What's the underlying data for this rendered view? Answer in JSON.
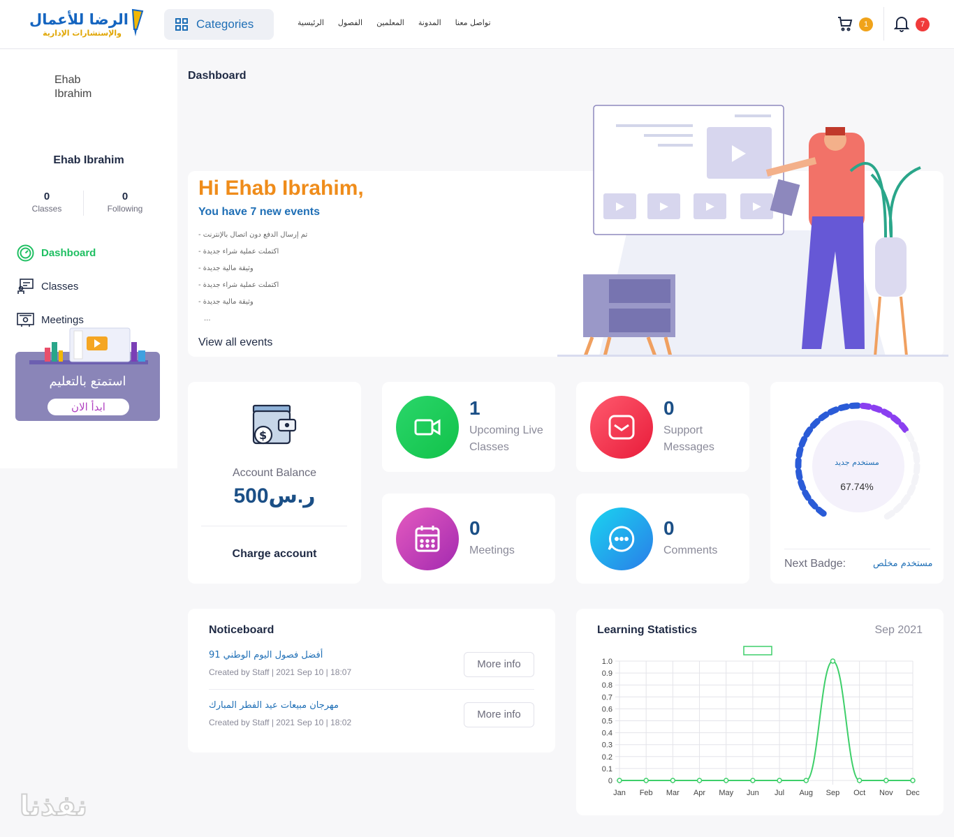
{
  "header": {
    "logo_main": "الرضا للأعمال",
    "logo_sub": "والإستشارات الإدارية",
    "categories_label": "Categories",
    "nav": [
      "تواصل معنا",
      "المدونة",
      "المعلمين",
      "الفصول",
      "الرئيسية"
    ],
    "cart_count": "1",
    "notification_count": "7"
  },
  "sidebar": {
    "avatar_alt": "Ehab Ibrahim",
    "user_name": "Ehab Ibrahim",
    "classes_count": "0",
    "classes_label": "Classes",
    "following_count": "0",
    "following_label": "Following",
    "menu": [
      {
        "label": "Dashboard",
        "icon": "gauge-icon"
      },
      {
        "label": "Classes",
        "icon": "classroom-icon"
      },
      {
        "label": "Meetings",
        "icon": "meeting-icon"
      }
    ],
    "promo_title": "استمتع بالتعليم",
    "promo_button": "ابدأ الان"
  },
  "main": {
    "page_title": "Dashboard",
    "hero": {
      "greeting": "Hi Ehab Ibrahim,",
      "subtitle": "You have 7 new events",
      "events": [
        "تم إرسال الدفع دون اتصال بالإنترنت -",
        "اكتملت عملية شراء جديدة -",
        "وثيقة مالية جديدة -",
        "اكتملت عملية شراء جديدة -",
        "وثيقة مالية جديدة -"
      ],
      "ellipsis": "...",
      "view_all": "View all events"
    },
    "balance": {
      "label": "Account Balance",
      "value": "500ر.س",
      "action": "Charge account"
    },
    "stats": {
      "upcoming_count": "1",
      "upcoming_label": "Upcoming Live Classes",
      "support_count": "0",
      "support_label": "Support Messages",
      "meetings_count": "0",
      "meetings_label": "Meetings",
      "comments_count": "0",
      "comments_label": "Comments"
    },
    "badge": {
      "current": "مستخدم جديد",
      "progress": 67.74,
      "percent_text": "67.74%",
      "next_label": "Next Badge:",
      "next_value": "مستخدم مخلص"
    },
    "noticeboard": {
      "title": "Noticeboard",
      "items": [
        {
          "title": "أفضل فصول اليوم الوطني 91",
          "meta": "Created by Staff  |  2021 Sep 10 | 18:07",
          "button": "More info"
        },
        {
          "title": "مهرجان مبيعات عيد الفطر المبارك",
          "meta": "Created by Staff  |  2021 Sep 10 | 18:02",
          "button": "More info"
        }
      ]
    },
    "learning": {
      "title": "Learning Statistics",
      "date": "Sep 2021"
    }
  },
  "colors": {
    "accent_orange": "#ef8c1a",
    "accent_blue": "#1f6fb6",
    "accent_green": "#1fbf62",
    "line_green": "#3ecf6a",
    "gauge_blue": "#2a5bd7",
    "gauge_purple": "#8a3ff0"
  },
  "chart_data": {
    "type": "line",
    "categories": [
      "Jan",
      "Feb",
      "Mar",
      "Apr",
      "May",
      "Jun",
      "Jul",
      "Aug",
      "Sep",
      "Oct",
      "Nov",
      "Dec"
    ],
    "values": [
      0,
      0,
      0,
      0,
      0,
      0,
      0,
      0,
      1,
      0,
      0,
      0
    ],
    "yticks": [
      "0",
      "0.1",
      "0.2",
      "0.3",
      "0.4",
      "0.5",
      "0.6",
      "0.7",
      "0.8",
      "0.9",
      "1.0"
    ],
    "ylim": [
      0,
      1
    ],
    "grid": true,
    "legend": "top-center"
  }
}
